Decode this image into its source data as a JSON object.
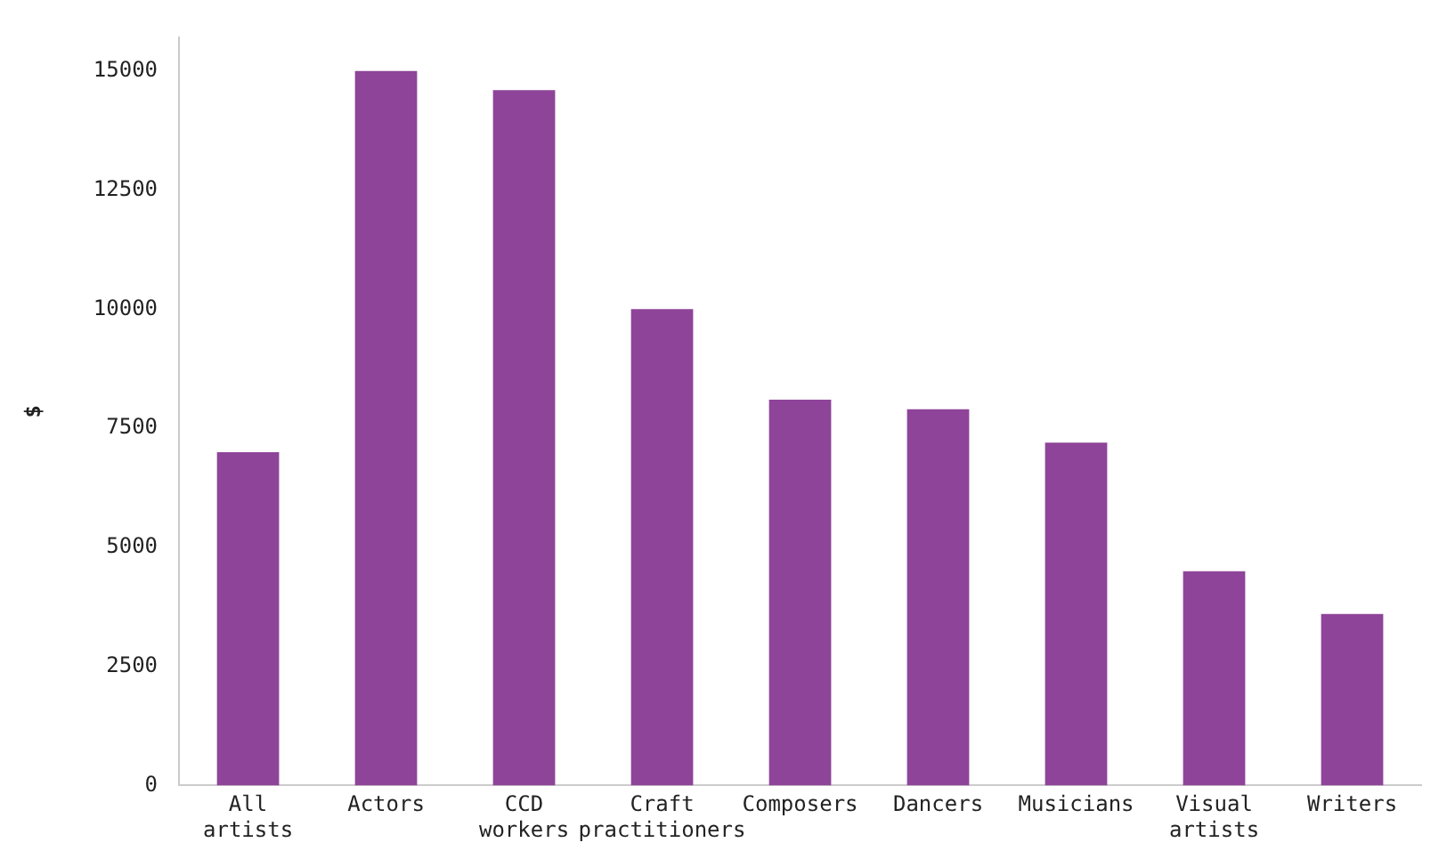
{
  "chart_data": {
    "type": "bar",
    "ylabel": "$",
    "categories": [
      "All artists",
      "Actors",
      "CCD workers",
      "Craft practitioners",
      "Composers",
      "Dancers",
      "Musicians",
      "Visual artists",
      "Writers"
    ],
    "values": [
      7000,
      15000,
      14600,
      10000,
      8100,
      7900,
      7200,
      4500,
      3600
    ],
    "color": "#8e4499",
    "ylim": [
      0,
      15700
    ],
    "yticks": [
      0,
      2500,
      5000,
      7500,
      10000,
      12500,
      15000
    ],
    "grid": false,
    "legend": false
  }
}
